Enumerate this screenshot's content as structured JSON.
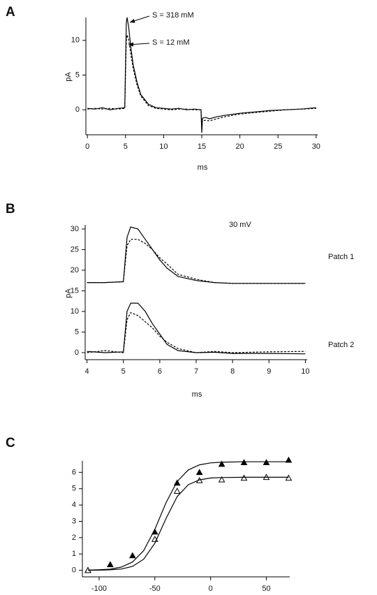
{
  "chart_data": [
    {
      "type": "line",
      "panel": "A",
      "xlabel": "ms",
      "ylabel": "pA",
      "xlim": [
        -0.2,
        30.2
      ],
      "ylim": [
        -3.6,
        13.3
      ],
      "xticks": [
        0,
        5,
        10,
        15,
        20,
        25,
        30
      ],
      "yticks": [
        0,
        5,
        10
      ],
      "annotations": [
        "S = 318 mM",
        "S = 12 mM"
      ],
      "series": [
        {
          "color": "#000000",
          "dash": false,
          "x": [
            0,
            1,
            2,
            3,
            4,
            4.9,
            5.1,
            5.2,
            5.4,
            5.7,
            6,
            6.5,
            7,
            8,
            9,
            10,
            11,
            12,
            13,
            14,
            14.9,
            15,
            15.1,
            15.5,
            16,
            17,
            18,
            20,
            22,
            24,
            26,
            28,
            30
          ],
          "values": [
            0.2,
            0.1,
            0.3,
            0.0,
            0.2,
            0.3,
            12.5,
            13.3,
            12,
            9,
            6.5,
            4,
            2.2,
            0.8,
            0.3,
            0.2,
            0.1,
            0.2,
            0.0,
            0.1,
            0,
            -3.3,
            -1.2,
            -1.1,
            -1.3,
            -1.0,
            -0.8,
            -0.5,
            -0.3,
            -0.1,
            0,
            0.1,
            0.3
          ]
        },
        {
          "color": "#000000",
          "dash": true,
          "x": [
            0,
            1,
            2,
            3,
            4,
            4.9,
            5.1,
            5.2,
            5.4,
            5.7,
            6,
            6.5,
            7,
            8,
            9,
            10,
            11,
            12,
            13,
            14,
            14.9,
            15,
            15.1,
            15.5,
            16,
            17,
            18,
            20,
            22,
            24,
            26,
            28,
            30
          ],
          "values": [
            0.1,
            0.2,
            0.1,
            0.2,
            0.1,
            0.2,
            10,
            10.8,
            10.2,
            8,
            6,
            3.6,
            2,
            0.6,
            0.2,
            0.1,
            0,
            0.1,
            0.1,
            0,
            0,
            -1.8,
            -1.6,
            -1.5,
            -1.6,
            -1.3,
            -1.0,
            -0.6,
            -0.4,
            -0.2,
            0,
            0.1,
            0.2
          ]
        }
      ]
    },
    {
      "type": "line",
      "panel": "B",
      "xlabel": "ms",
      "ylabel": "pA",
      "xlim": [
        3.95,
        10.05
      ],
      "ylim": [
        -1.7,
        31
      ],
      "xticks": [
        4,
        5,
        6,
        7,
        8,
        9,
        10
      ],
      "yticks": [
        0,
        5,
        10,
        15,
        20,
        25,
        30
      ],
      "annotations": [
        "30 mV",
        "Patch 1",
        "Patch 2"
      ],
      "series": [
        {
          "color": "#000000",
          "dash": false,
          "x": [
            4,
            4.5,
            5,
            5.1,
            5.2,
            5.4,
            5.6,
            5.8,
            6,
            6.2,
            6.5,
            7,
            7.5,
            8,
            9,
            10
          ],
          "values": [
            17,
            17,
            17.2,
            28,
            30.5,
            30,
            27.5,
            25,
            22.5,
            20.5,
            18.5,
            17.5,
            17,
            16.8,
            16.8,
            16.8
          ]
        },
        {
          "color": "#000000",
          "dash": true,
          "x": [
            4,
            4.5,
            5,
            5.1,
            5.2,
            5.4,
            5.6,
            5.8,
            6,
            6.2,
            6.5,
            7,
            7.5,
            8,
            9,
            10
          ],
          "values": [
            17,
            17,
            17.2,
            26,
            27.5,
            27.5,
            26.5,
            25,
            23,
            21.5,
            19,
            17.8,
            17,
            16.8,
            16.8,
            16.8
          ]
        },
        {
          "color": "#000000",
          "dash": false,
          "x": [
            4,
            4.5,
            5,
            5.1,
            5.2,
            5.4,
            5.6,
            5.8,
            6,
            6.2,
            6.5,
            7,
            7.5,
            8,
            9,
            10
          ],
          "values": [
            0.3,
            0,
            0.2,
            10,
            12,
            12,
            10,
            7,
            4.5,
            2,
            0.5,
            0,
            0.1,
            -0.2,
            -0.2,
            -0.3
          ]
        },
        {
          "color": "#000000",
          "dash": true,
          "x": [
            4,
            4.5,
            5,
            5.1,
            5.2,
            5.4,
            5.6,
            5.8,
            6,
            6.2,
            6.5,
            7,
            7.5,
            8,
            9,
            10
          ],
          "values": [
            0,
            0.5,
            0,
            8,
            9.7,
            9,
            7.5,
            6,
            4,
            2.5,
            1,
            0,
            0.3,
            0,
            0.2,
            0.3
          ]
        }
      ]
    },
    {
      "type": "scatter",
      "panel": "C",
      "xlim": [
        -115,
        71
      ],
      "ylim": [
        -0.4,
        6.7
      ],
      "xticks": [
        -100,
        -50,
        0,
        50
      ],
      "yticks": [
        0,
        1,
        2,
        3,
        4,
        5,
        6
      ],
      "series": [
        {
          "color": "#000000",
          "marker": "filled-triangle",
          "x": [
            -110,
            -90,
            -70,
            -50,
            -30,
            -10,
            10,
            30,
            50,
            70
          ],
          "values": [
            0,
            0.35,
            0.9,
            2.35,
            5.35,
            6.0,
            6.5,
            6.6,
            6.6,
            6.75
          ]
        },
        {
          "color": "#000000",
          "marker": "open-triangle",
          "x": [
            -110,
            -50,
            -30,
            -10,
            10,
            30,
            50,
            70
          ],
          "values": [
            0,
            1.9,
            4.85,
            5.5,
            5.55,
            5.65,
            5.7,
            5.65
          ]
        },
        {
          "color": "#000000",
          "marker": "line",
          "x": [
            -110,
            -100,
            -90,
            -80,
            -70,
            -60,
            -50,
            -40,
            -30,
            -20,
            -10,
            0,
            10,
            30,
            50,
            70
          ],
          "values": [
            0.01,
            0.03,
            0.07,
            0.2,
            0.51,
            1.21,
            2.51,
            4.14,
            5.44,
            6.15,
            6.46,
            6.58,
            6.62,
            6.65,
            6.65,
            6.65
          ]
        },
        {
          "color": "#000000",
          "marker": "line",
          "x": [
            -110,
            -100,
            -90,
            -80,
            -70,
            -60,
            -50,
            -40,
            -30,
            -20,
            -10,
            0,
            10,
            30,
            50,
            70
          ],
          "values": [
            0.003,
            0.01,
            0.03,
            0.08,
            0.24,
            0.68,
            1.66,
            3.17,
            4.51,
            5.24,
            5.54,
            5.65,
            5.68,
            5.7,
            5.7,
            5.7
          ]
        }
      ]
    }
  ]
}
